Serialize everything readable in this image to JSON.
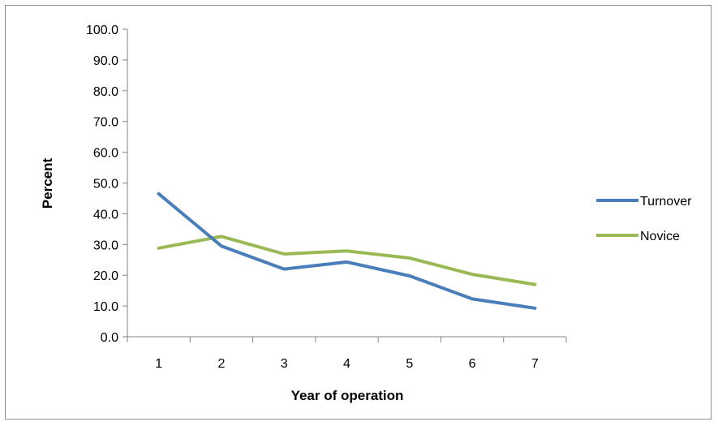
{
  "chart_data": {
    "type": "line",
    "title": "",
    "xlabel": "Year of operation",
    "ylabel": "Percent",
    "categories": [
      "1",
      "2",
      "3",
      "4",
      "5",
      "6",
      "7"
    ],
    "ylim": [
      0,
      100
    ],
    "y_ticks": [
      "0.0",
      "10.0",
      "20.0",
      "30.0",
      "40.0",
      "50.0",
      "60.0",
      "70.0",
      "80.0",
      "90.0",
      "100.0"
    ],
    "grid": false,
    "legend_position": "right",
    "series": [
      {
        "name": "Turnover",
        "color": "#4a7ebb",
        "values": [
          46.5,
          29.5,
          22.0,
          24.3,
          19.8,
          12.3,
          9.3
        ]
      },
      {
        "name": "Novice",
        "color": "#98b954",
        "values": [
          28.8,
          32.6,
          26.9,
          27.9,
          25.6,
          20.3,
          17.0
        ]
      }
    ]
  }
}
